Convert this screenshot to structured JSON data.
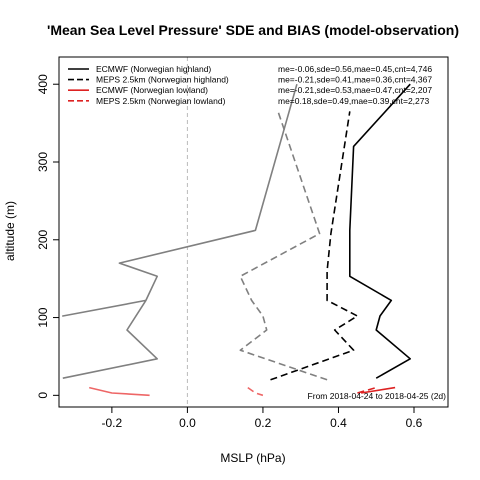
{
  "chart_data": {
    "type": "line",
    "title": "'Mean Sea Level Pressure' SDE and BIAS (model-observation)",
    "xlabel": "MSLP (hPa)",
    "ylabel": "altitude (m)",
    "xlim": [
      -0.34,
      0.69
    ],
    "ylim": [
      -15,
      435
    ],
    "xticks": [
      -0.2,
      0.0,
      0.2,
      0.4,
      0.6
    ],
    "xtick_labels": [
      "-0.2",
      "0.0",
      "0.2",
      "0.4",
      "0.6"
    ],
    "yticks": [
      0,
      100,
      200,
      300,
      400
    ],
    "ytick_labels": [
      "0",
      "100",
      "200",
      "300",
      "400"
    ],
    "zero_line": 0.0,
    "legend_position": "top-left",
    "annotation": "From 2018-04-24 to 2018-04-25 (2d)",
    "series": [
      {
        "name": "ECMWF (Norwegian highland)",
        "stats": "me=-0.06,sde=0.56,mae=0.45,cnt=4,746",
        "color": "#000000",
        "dash": "solid",
        "bias": {
          "x": [
            -0.33,
            -0.08,
            -0.16,
            -0.11,
            -0.33,
            -0.11,
            -0.08,
            -0.18,
            0.18,
            0.29
          ],
          "y": [
            22,
            47,
            84,
            122,
            102,
            122,
            153,
            170,
            212,
            400
          ]
        },
        "sde": {
          "x": [
            0.5,
            0.59,
            0.5,
            0.51,
            0.54,
            0.43,
            0.43,
            0.44,
            0.59
          ],
          "y": [
            22,
            47,
            84,
            102,
            122,
            153,
            212,
            320,
            400
          ]
        }
      },
      {
        "name": "MEPS 2.5km (Norwegian highland)",
        "stats": "me=-0.21,sde=0.41,mae=0.36,cnt=4,367",
        "color": "#000000",
        "dash": "dashed",
        "bias": {
          "x": [
            0.37,
            0.14,
            0.21,
            0.2,
            0.17,
            0.14,
            0.35,
            0.24
          ],
          "y": [
            20,
            58,
            84,
            102,
            122,
            153,
            208,
            365
          ]
        },
        "sde": {
          "x": [
            0.22,
            0.44,
            0.39,
            0.45,
            0.37,
            0.37,
            0.38,
            0.43
          ],
          "y": [
            20,
            58,
            84,
            102,
            122,
            160,
            208,
            365
          ]
        }
      },
      {
        "name": "ECMWF (Norwegian lowland)",
        "stats": "me=-0.21,sde=0.53,mae=0.47,cnt=2,207",
        "color": "#dd2222",
        "dash": "solid",
        "bias": {
          "x": [
            -0.26,
            -0.2,
            -0.1
          ],
          "y": [
            10,
            3,
            0
          ]
        },
        "sde": {
          "x": [
            0.46,
            0.55
          ],
          "y": [
            3,
            10
          ]
        }
      },
      {
        "name": "MEPS 2.5km (Norwegian lowland)",
        "stats": "me=0.18,sde=0.49,mae=0.39,cnt=2,273",
        "color": "#dd2222",
        "dash": "dashed",
        "bias": {
          "x": [
            0.16,
            0.18,
            0.2
          ],
          "y": [
            10,
            3,
            0
          ]
        },
        "sde": {
          "x": [
            0.45,
            0.5
          ],
          "y": [
            3,
            10
          ]
        }
      }
    ]
  }
}
